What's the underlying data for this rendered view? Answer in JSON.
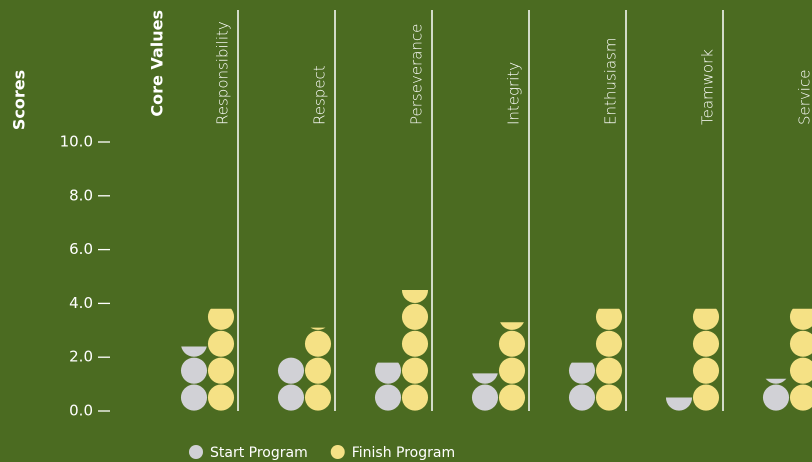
{
  "chart_data": {
    "type": "pictogram",
    "y_label": "Scores",
    "x_label": "Core Values",
    "categories": [
      "Responsibility",
      "Respect",
      "Perseverance",
      "Integrity",
      "Enthusiasm",
      "Teamwork",
      "Service"
    ],
    "series": [
      {
        "name": "Start Program",
        "color": "#d1d1d6",
        "values": [
          2.4,
          2.0,
          1.8,
          1.4,
          1.8,
          0.5,
          1.2
        ]
      },
      {
        "name": "Finish Program",
        "color": "#f5e185",
        "values": [
          3.8,
          3.1,
          4.5,
          3.3,
          3.8,
          3.8,
          3.8
        ]
      }
    ],
    "ylim": [
      0,
      10
    ],
    "yticks": [
      {
        "value": 0,
        "label": "0.0"
      },
      {
        "value": 2,
        "label": "2.0"
      },
      {
        "value": 4,
        "label": "4.0"
      },
      {
        "value": 6,
        "label": "6.0"
      },
      {
        "value": 8,
        "label": "8.0"
      },
      {
        "value": 10,
        "label": "10.0"
      }
    ]
  }
}
